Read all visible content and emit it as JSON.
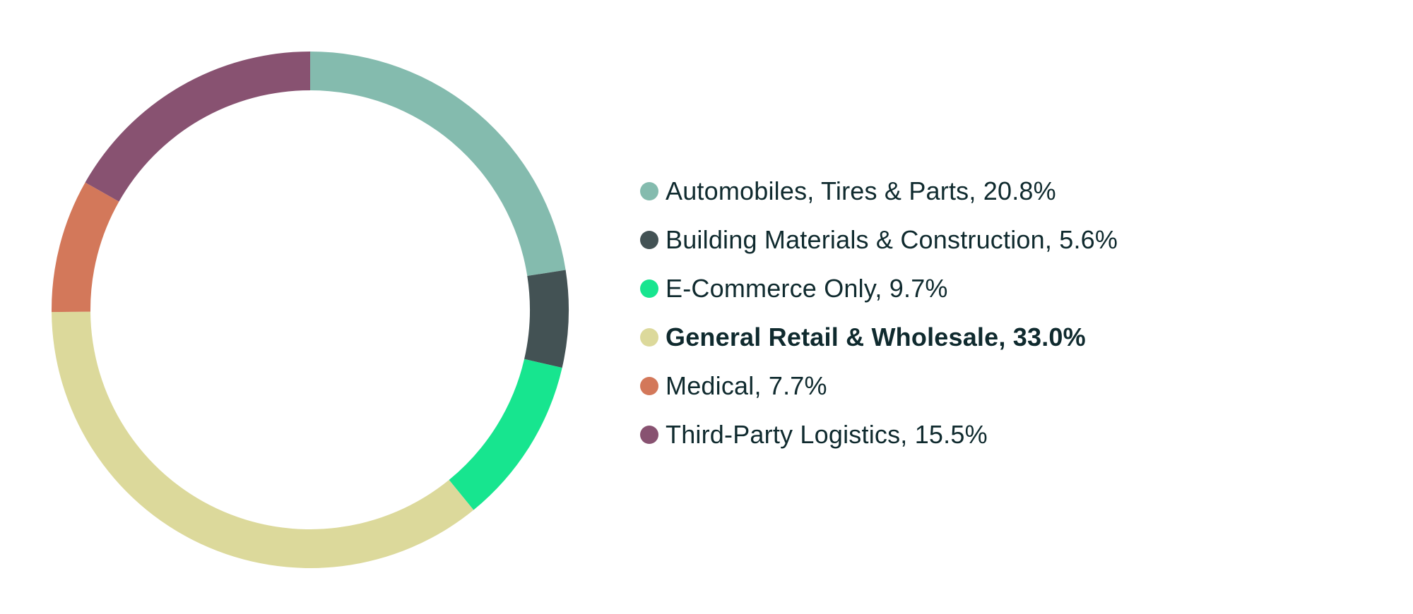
{
  "chart_data": {
    "type": "pie",
    "variant": "donut",
    "title": "",
    "legend_position": "right",
    "slices": [
      {
        "label": "Automobiles, Tires & Parts, 20.8%",
        "category": "Automobiles, Tires & Parts",
        "value": 20.8,
        "color": "#84bbae",
        "emphasized": false
      },
      {
        "label": "Building Materials & Construction, 5.6%",
        "category": "Building Materials & Construction",
        "value": 5.6,
        "color": "#435254",
        "emphasized": false
      },
      {
        "label": "E-Commerce Only, 9.7%",
        "category": "E-Commerce Only",
        "value": 9.7,
        "color": "#17e58f",
        "emphasized": false
      },
      {
        "label": "General Retail & Wholesale, 33.0%",
        "category": "General Retail & Wholesale",
        "value": 33.0,
        "color": "#dcd99b",
        "emphasized": true
      },
      {
        "label": "Medical, 7.7%",
        "category": "Medical",
        "value": 7.7,
        "color": "#d3785a",
        "emphasized": false
      },
      {
        "label": "Third-Party Logistics, 15.5%",
        "category": "Third-Party Logistics",
        "value": 15.5,
        "color": "#885271",
        "emphasized": false
      }
    ]
  }
}
